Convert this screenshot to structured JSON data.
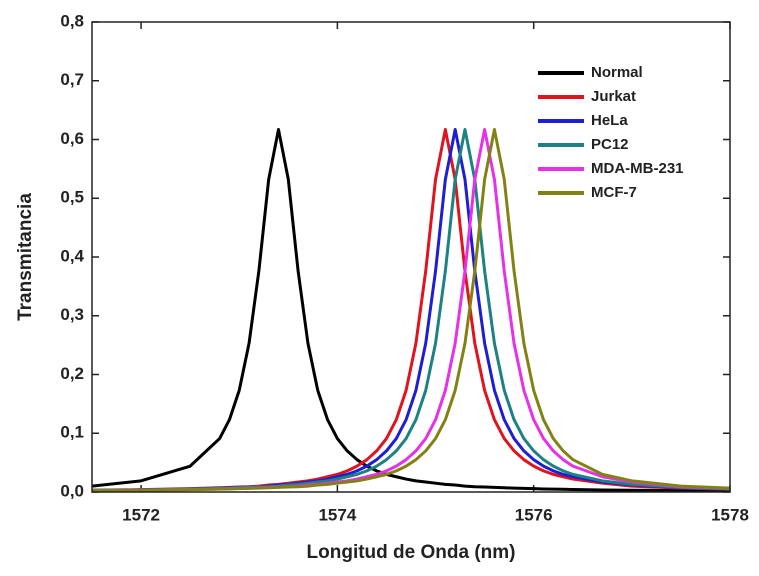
{
  "chart_data": {
    "type": "line",
    "x_label": "Longitud de Onda (nm)",
    "y_label": "Transmitancia",
    "x": [
      1571.5,
      1572,
      1572.5,
      1572.8,
      1572.9,
      1573.0,
      1573.1,
      1573.2,
      1573.3,
      1573.4,
      1573.5,
      1573.6,
      1573.7,
      1573.8,
      1573.9,
      1574.0,
      1574.1,
      1574.2,
      1574.3,
      1574.4,
      1574.5,
      1574.6,
      1574.7,
      1574.8,
      1574.9,
      1575.0,
      1575.1,
      1575.2,
      1575.3,
      1575.4,
      1575.5,
      1575.6,
      1575.7,
      1575.8,
      1575.9,
      1576.0,
      1576.1,
      1576.2,
      1576.3,
      1576.4,
      1576.7,
      1577,
      1577.5,
      1578
    ],
    "series": [
      {
        "name": "Normal",
        "color": "#000000",
        "values": [
          0.01,
          0.019,
          0.044,
          0.091,
          0.123,
          0.173,
          0.253,
          0.376,
          0.532,
          0.617,
          0.532,
          0.376,
          0.253,
          0.173,
          0.123,
          0.091,
          0.07,
          0.055,
          0.044,
          0.036,
          0.03,
          0.026,
          0.022,
          0.019,
          0.017,
          0.015,
          0.013,
          0.012,
          0.01,
          0.009,
          0.0086,
          0.0079,
          0.0072,
          0.0066,
          0.0061,
          0.0057,
          0.0052,
          0.0049,
          0.0046,
          0.0043,
          0.0035,
          0.003,
          0.0023,
          0.0018
        ]
      },
      {
        "name": "Jurkat",
        "color": "#e0141e",
        "values": [
          0.003,
          0.004,
          0.0057,
          0.0072,
          0.0079,
          0.0086,
          0.009,
          0.01,
          0.012,
          0.013,
          0.015,
          0.017,
          0.019,
          0.022,
          0.026,
          0.03,
          0.036,
          0.044,
          0.055,
          0.07,
          0.091,
          0.123,
          0.173,
          0.253,
          0.376,
          0.532,
          0.617,
          0.532,
          0.376,
          0.253,
          0.173,
          0.123,
          0.091,
          0.07,
          0.055,
          0.044,
          0.036,
          0.03,
          0.026,
          0.022,
          0.015,
          0.01,
          0.0066,
          0.0046
        ]
      },
      {
        "name": "HeLa",
        "color": "#1e1ed2",
        "values": [
          0.0028,
          0.0037,
          0.0052,
          0.0066,
          0.0072,
          0.0079,
          0.0086,
          0.009,
          0.01,
          0.012,
          0.013,
          0.015,
          0.017,
          0.019,
          0.022,
          0.026,
          0.03,
          0.036,
          0.044,
          0.055,
          0.07,
          0.091,
          0.123,
          0.173,
          0.253,
          0.376,
          0.532,
          0.617,
          0.532,
          0.376,
          0.253,
          0.173,
          0.123,
          0.091,
          0.07,
          0.055,
          0.044,
          0.036,
          0.03,
          0.026,
          0.017,
          0.012,
          0.0072,
          0.0049
        ]
      },
      {
        "name": "PC12",
        "color": "#1e8282",
        "values": [
          0.0027,
          0.0035,
          0.0049,
          0.0061,
          0.0066,
          0.0072,
          0.0079,
          0.0086,
          0.009,
          0.01,
          0.012,
          0.013,
          0.015,
          0.017,
          0.019,
          0.022,
          0.026,
          0.03,
          0.036,
          0.044,
          0.055,
          0.07,
          0.091,
          0.123,
          0.173,
          0.253,
          0.376,
          0.532,
          0.617,
          0.532,
          0.376,
          0.253,
          0.173,
          0.123,
          0.091,
          0.07,
          0.055,
          0.044,
          0.036,
          0.03,
          0.019,
          0.013,
          0.0079,
          0.0052
        ]
      },
      {
        "name": "MDA-MB-231",
        "color": "#e632e6",
        "values": [
          0.0024,
          0.0031,
          0.0043,
          0.0052,
          0.0057,
          0.0061,
          0.0066,
          0.0072,
          0.0079,
          0.0086,
          0.009,
          0.01,
          0.012,
          0.013,
          0.015,
          0.017,
          0.019,
          0.022,
          0.026,
          0.03,
          0.036,
          0.044,
          0.055,
          0.07,
          0.091,
          0.123,
          0.173,
          0.253,
          0.376,
          0.532,
          0.617,
          0.532,
          0.376,
          0.253,
          0.173,
          0.123,
          0.091,
          0.07,
          0.055,
          0.044,
          0.026,
          0.017,
          0.009,
          0.0061
        ]
      },
      {
        "name": "MCF-7",
        "color": "#828214",
        "values": [
          0.0023,
          0.003,
          0.004,
          0.0049,
          0.0052,
          0.0057,
          0.0061,
          0.0066,
          0.0072,
          0.0079,
          0.0086,
          0.009,
          0.01,
          0.012,
          0.013,
          0.015,
          0.017,
          0.019,
          0.022,
          0.026,
          0.03,
          0.036,
          0.044,
          0.055,
          0.07,
          0.091,
          0.123,
          0.173,
          0.253,
          0.376,
          0.532,
          0.617,
          0.532,
          0.376,
          0.253,
          0.173,
          0.123,
          0.091,
          0.07,
          0.055,
          0.03,
          0.019,
          0.01,
          0.0066
        ]
      }
    ],
    "xlim": [
      1571.5,
      1578
    ],
    "xticks": [
      1572,
      1574,
      1576,
      1578
    ],
    "ylim": [
      0,
      0.8
    ],
    "yticks": [
      {
        "value": 0,
        "label": "0,0"
      },
      {
        "value": 0.1,
        "label": "0,1"
      },
      {
        "value": 0.2,
        "label": "0,2"
      },
      {
        "value": 0.3,
        "label": "0,3"
      },
      {
        "value": 0.4,
        "label": "0,4"
      },
      {
        "value": 0.5,
        "label": "0,5"
      },
      {
        "value": 0.6,
        "label": "0,6"
      },
      {
        "value": 0.7,
        "label": "0,7"
      },
      {
        "value": 0.8,
        "label": "0,8"
      }
    ],
    "legend": "upper-right"
  }
}
